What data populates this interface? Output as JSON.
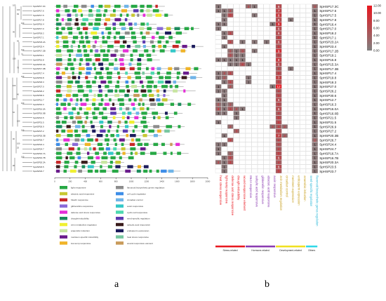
{
  "genes": [
    "SpHSP17.3C",
    "SpHSP17.6",
    "SpHSP17.5",
    "SpHSP17.8",
    "SpHSP16.4",
    "SpHSP17.0",
    "SpHSP18.2",
    "SpHSP17.1",
    "SpHSP23.2A",
    "SpHSP23.4",
    "SpHSP17.2B",
    "SpHSP19.1",
    "SpHSP15.8",
    "SpHSP15.3A",
    "SpHSP17.3B",
    "SpHSP17.4",
    "SpHSP19.8",
    "SpHSP18.3",
    "SpHSP27.0",
    "SpHSP26.2",
    "SpHSP30.6",
    "SpHSP12.7",
    "SpHSP16.3",
    "SpHSP16.0A",
    "SpHSP16.0B",
    "SpHSP21.5",
    "SpHSP31.5",
    "SpHSP26.9",
    "SpHSP27.2",
    "SpHSP20.3B",
    "SpHSP26.7",
    "SpHSP24.4",
    "SpHSP24.7",
    "SpHSP16.7A",
    "SpHSP16.7B",
    "SpHSP20.3A",
    "SpHSP23.5",
    "SpHSP23.7"
  ],
  "bootstrap": [
    "100",
    "99",
    "100",
    "96",
    "45",
    "100",
    "100",
    "70",
    "100",
    "100",
    "40",
    "100",
    "62",
    "100",
    "100",
    "90",
    "25",
    "100",
    "96",
    "100",
    "75",
    "100",
    "100"
  ],
  "motif_axis_ticks": [
    "0",
    "200",
    "400",
    "600",
    "800",
    "1000",
    "1200",
    "1400",
    "1600",
    "1800",
    "2000"
  ],
  "motif_legend": [
    {
      "label": "light responsive",
      "color": "#27a845"
    },
    {
      "label": "flavonoid biosynthetic genes regulation",
      "color": "#8c8c8c"
    },
    {
      "label": "abscisic acid responsive",
      "color": "#c8c832"
    },
    {
      "label": "cell cycle regulation",
      "color": "#3e8ee8"
    },
    {
      "label": "hitachi responsive",
      "color": "#c82828"
    },
    {
      "label": "circadian control",
      "color": "#6fb4e8"
    },
    {
      "label": "gibberellins-responsive",
      "color": "#8a6ad8"
    },
    {
      "label": "auxin responsive",
      "color": "#33c8c8"
    },
    {
      "label": "defense and stress responsive",
      "color": "#e62fd8"
    },
    {
      "label": "cyclin-cell responsive",
      "color": "#4dd9b0"
    },
    {
      "label": "drought-inducibility",
      "color": "#1c8c5c"
    },
    {
      "label": "seed-specific regulation",
      "color": "#5c3ab0"
    },
    {
      "label": "zein metabolism regulation",
      "color": "#f0f030"
    },
    {
      "label": "salicylic acid responsive",
      "color": "#3a1c1c"
    },
    {
      "label": "anaerobic induction",
      "color": "#c8e6a0"
    },
    {
      "label": "endosperm expression",
      "color": "#1c1c5c"
    },
    {
      "label": "meristem-specific inducibility",
      "color": "#6a1c8c"
    },
    {
      "label": "heat stress responsive",
      "color": "#78c8a0"
    },
    {
      "label": "low-temp responsive",
      "color": "#f0b428"
    },
    {
      "label": "wound-responsive element",
      "color": "#c89a5a"
    }
  ],
  "heatmap_columns": [
    "heat stress responsive",
    "light-temp responsive",
    "defense and stress responsive",
    "drought-inducibility",
    "wound-responsive element",
    "MeJA responsive",
    "salicylic acid responsive",
    "gibberellin responsive",
    "abscisic acid responsive",
    "auxin responsive",
    "zein metabolism regulation",
    "circadian control",
    "meristem expression",
    "endosperm expression",
    "anaerobic induction",
    "seed-specific regulation",
    "flavonoid biosynthetic genes regulation"
  ],
  "heatmap_values": [
    [
      1,
      0,
      0,
      0,
      0,
      2,
      1,
      0,
      0,
      0,
      6,
      0,
      0,
      0,
      0,
      0,
      2
    ],
    [
      1,
      1,
      2,
      0,
      0,
      0,
      0,
      0,
      0,
      0,
      7,
      0,
      0,
      0,
      0,
      0,
      1
    ],
    [
      0,
      1,
      5,
      0,
      0,
      0,
      1,
      0,
      0,
      0,
      8,
      0,
      0,
      0,
      0,
      0,
      1
    ],
    [
      0,
      1,
      0,
      0,
      0,
      0,
      0,
      0,
      0,
      0,
      6,
      0,
      1,
      0,
      0,
      0,
      1
    ],
    [
      1,
      1,
      0,
      0,
      0,
      0,
      0,
      0,
      0,
      1,
      9,
      0,
      0,
      0,
      0,
      0,
      1
    ],
    [
      1,
      0,
      0,
      0,
      0,
      0,
      0,
      0,
      0,
      0,
      6,
      0,
      0,
      0,
      0,
      0,
      1
    ],
    [
      0,
      1,
      4,
      0,
      0,
      0,
      0,
      0,
      0,
      0,
      6,
      0,
      0,
      0,
      0,
      0,
      1
    ],
    [
      0,
      1,
      0,
      0,
      0,
      0,
      0,
      0,
      0,
      0,
      5,
      0,
      0,
      0,
      0,
      0,
      1
    ],
    [
      0,
      0,
      4,
      0,
      1,
      0,
      1,
      0,
      1,
      0,
      6,
      0,
      0,
      0,
      0,
      0,
      1
    ],
    [
      0,
      1,
      0,
      0,
      0,
      0,
      0,
      0,
      0,
      0,
      5,
      0,
      0,
      0,
      0,
      0,
      1
    ],
    [
      0,
      0,
      2,
      1,
      3,
      0,
      1,
      0,
      0,
      0,
      9,
      0,
      0,
      0,
      0,
      0,
      1
    ],
    [
      0,
      0,
      3,
      1,
      1,
      0,
      0,
      0,
      0,
      0,
      5,
      0,
      0,
      0,
      0,
      0,
      1
    ],
    [
      1,
      1,
      1,
      1,
      1,
      0,
      0,
      0,
      0,
      0,
      8,
      0,
      0,
      0,
      0,
      0,
      1
    ],
    [
      0,
      0,
      1,
      1,
      4,
      1,
      0,
      0,
      0,
      0,
      6,
      0,
      0,
      0,
      0,
      0,
      1
    ],
    [
      0,
      0,
      0,
      0,
      0,
      0,
      0,
      0,
      0,
      0,
      4,
      0,
      1,
      0,
      0,
      0,
      1
    ],
    [
      1,
      2,
      4,
      0,
      0,
      0,
      0,
      0,
      0,
      0,
      5,
      0,
      0,
      0,
      0,
      0,
      1
    ],
    [
      1,
      2,
      0,
      0,
      0,
      1,
      0,
      0,
      0,
      0,
      7,
      0,
      0,
      0,
      0,
      0,
      1
    ],
    [
      0,
      1,
      4,
      0,
      0,
      1,
      0,
      0,
      0,
      0,
      5,
      0,
      0,
      0,
      0,
      0,
      1
    ],
    [
      1,
      0,
      2,
      0,
      0,
      0,
      0,
      0,
      0,
      1,
      12,
      0,
      0,
      0,
      0,
      0,
      1
    ],
    [
      1,
      1,
      0,
      0,
      0,
      0,
      0,
      0,
      0,
      0,
      4,
      0,
      0,
      0,
      0,
      0,
      1
    ],
    [
      0,
      1,
      0,
      0,
      0,
      0,
      0,
      0,
      0,
      0,
      5,
      0,
      0,
      0,
      0,
      0,
      1
    ],
    [
      1,
      1,
      0,
      0,
      0,
      0,
      0,
      0,
      0,
      0,
      6,
      0,
      0,
      0,
      0,
      0,
      1
    ],
    [
      2,
      1,
      2,
      0,
      0,
      0,
      0,
      0,
      0,
      0,
      5,
      0,
      0,
      0,
      0,
      0,
      1
    ],
    [
      3,
      1,
      4,
      2,
      1,
      0,
      0,
      0,
      0,
      0,
      6,
      0,
      0,
      0,
      0,
      0,
      1
    ],
    [
      1,
      1,
      0,
      1,
      0,
      0,
      0,
      0,
      0,
      0,
      4,
      0,
      0,
      0,
      0,
      0,
      1
    ],
    [
      0,
      0,
      0,
      1,
      0,
      0,
      0,
      0,
      0,
      0,
      5,
      0,
      0,
      0,
      0,
      0,
      1
    ],
    [
      1,
      0,
      0,
      0,
      0,
      0,
      0,
      0,
      0,
      0,
      5,
      0,
      0,
      0,
      0,
      0,
      1
    ],
    [
      0,
      0,
      2,
      0,
      0,
      0,
      0,
      0,
      0,
      2,
      4,
      2,
      0,
      0,
      0,
      0,
      1
    ],
    [
      0,
      0,
      0,
      3,
      0,
      0,
      0,
      0,
      0,
      0,
      5,
      0,
      0,
      0,
      0,
      0,
      1
    ],
    [
      0,
      1,
      0,
      0,
      0,
      0,
      0,
      0,
      0,
      0,
      7,
      2,
      0,
      0,
      0,
      0,
      1
    ],
    [
      0,
      0,
      4,
      0,
      0,
      0,
      0,
      0,
      0,
      0,
      4,
      0,
      0,
      0,
      0,
      0,
      2
    ],
    [
      1,
      1,
      0,
      0,
      0,
      0,
      0,
      0,
      0,
      0,
      4,
      0,
      0,
      0,
      0,
      0,
      1
    ],
    [
      1,
      0,
      0,
      0,
      0,
      0,
      0,
      0,
      0,
      0,
      4,
      0,
      0,
      0,
      0,
      0,
      1
    ],
    [
      1,
      0,
      2,
      0,
      0,
      0,
      0,
      0,
      0,
      0,
      5,
      0,
      0,
      0,
      0,
      0,
      1
    ],
    [
      0,
      1,
      4,
      0,
      0,
      0,
      0,
      0,
      0,
      0,
      6,
      0,
      0,
      0,
      0,
      0,
      1
    ],
    [
      2,
      1,
      4,
      0,
      0,
      0,
      0,
      0,
      0,
      0,
      4,
      0,
      0,
      0,
      0,
      0,
      1
    ],
    [
      0,
      1,
      0,
      0,
      0,
      0,
      0,
      0,
      0,
      0,
      6,
      0,
      0,
      0,
      0,
      0,
      1
    ],
    [
      0,
      1,
      0,
      0,
      0,
      0,
      0,
      0,
      0,
      0,
      5,
      0,
      0,
      0,
      0,
      0,
      1
    ]
  ],
  "colorbar": {
    "ticks": [
      "12.00",
      "10.00",
      "8.00",
      "6.00",
      "4.00",
      "2.00",
      "0.00"
    ],
    "low": "#808080",
    "high": "#e8171f"
  },
  "groups": [
    {
      "label": "Stress-related",
      "color": "#e8171f"
    },
    {
      "label": "Hormone-related",
      "color": "#8a3ab0"
    },
    {
      "label": "Development-related",
      "color": "#f0e020"
    },
    {
      "label": "Others",
      "color": "#2fd8e8"
    }
  ],
  "panel_labels": {
    "a": "a",
    "b": "b"
  }
}
